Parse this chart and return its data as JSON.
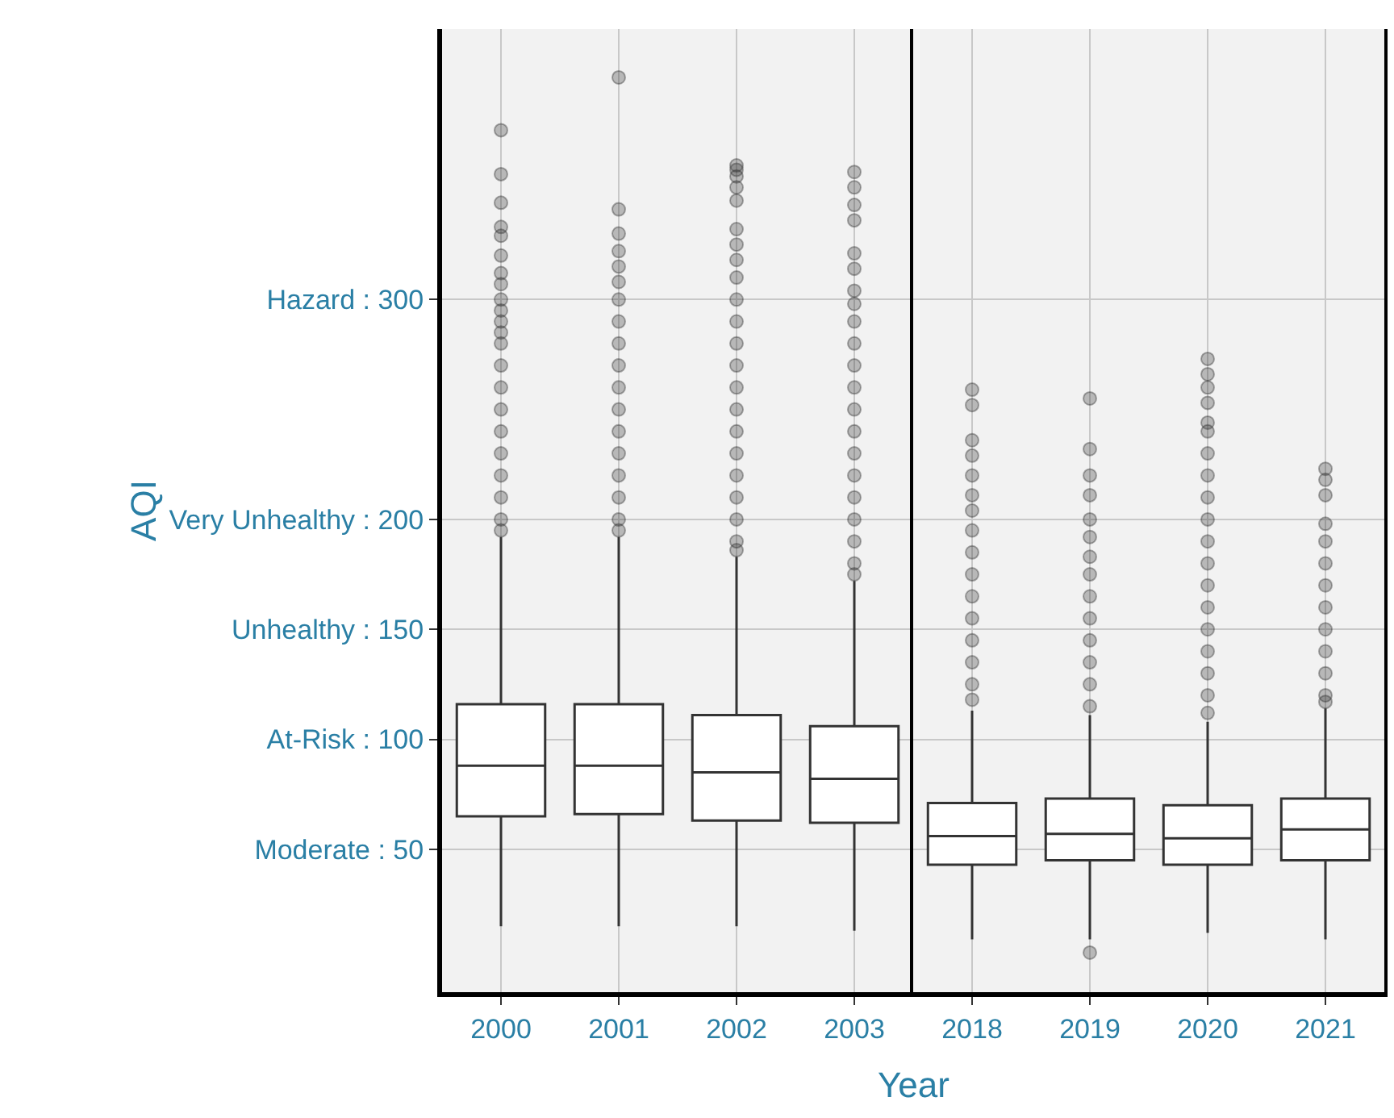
{
  "chart_data": [
    {
      "type": "box",
      "ylabel": "AQI",
      "categories": [
        "2000",
        "2001",
        "2002",
        "2003"
      ],
      "boxes": [
        {
          "low": 15,
          "q1": 65,
          "median": 88,
          "q3": 116,
          "high": 192,
          "outliers": [
            377,
            357,
            344,
            333,
            329,
            320,
            312,
            307,
            300,
            295,
            290,
            285,
            280,
            270,
            260,
            250,
            240,
            230,
            220,
            210,
            200,
            195
          ]
        },
        {
          "low": 15,
          "q1": 66,
          "median": 88,
          "q3": 116,
          "high": 192,
          "outliers": [
            401,
            341,
            330,
            322,
            315,
            308,
            300,
            290,
            280,
            270,
            260,
            250,
            240,
            230,
            220,
            210,
            200,
            195
          ]
        },
        {
          "low": 15,
          "q1": 63,
          "median": 85,
          "q3": 111,
          "high": 183,
          "outliers": [
            361,
            359,
            356,
            351,
            345,
            332,
            325,
            318,
            310,
            300,
            290,
            280,
            270,
            260,
            250,
            240,
            230,
            220,
            210,
            200,
            190,
            186
          ]
        },
        {
          "low": 13,
          "q1": 62,
          "median": 82,
          "q3": 106,
          "high": 172,
          "outliers": [
            358,
            351,
            343,
            336,
            321,
            314,
            304,
            298,
            290,
            280,
            270,
            260,
            250,
            240,
            230,
            220,
            210,
            200,
            190,
            180,
            175
          ]
        }
      ],
      "ylim": [
        -15,
        423
      ],
      "yticks": [
        {
          "value": 50,
          "label": "Moderate : 50"
        },
        {
          "value": 100,
          "label": "At-Risk : 100"
        },
        {
          "value": 150,
          "label": "Unhealthy : 150"
        },
        {
          "value": 200,
          "label": "Very Unhealthy : 200"
        },
        {
          "value": 300,
          "label": "Hazard : 300"
        }
      ],
      "grid": true,
      "marker": "circle"
    },
    {
      "type": "box",
      "xlabel": "Year",
      "categories": [
        "2018",
        "2019",
        "2020",
        "2021"
      ],
      "boxes": [
        {
          "low": 9,
          "q1": 43,
          "median": 56,
          "q3": 71,
          "high": 113,
          "outliers": [
            259,
            252,
            236,
            229,
            220,
            211,
            204,
            195,
            185,
            175,
            165,
            155,
            145,
            135,
            125,
            118
          ]
        },
        {
          "low": 9,
          "q1": 45,
          "median": 57,
          "q3": 73,
          "high": 111,
          "outliers": [
            255,
            232,
            220,
            211,
            200,
            192,
            183,
            175,
            165,
            155,
            145,
            135,
            125,
            115,
            3
          ]
        },
        {
          "low": 12,
          "q1": 43,
          "median": 55,
          "q3": 70,
          "high": 108,
          "outliers": [
            273,
            266,
            260,
            253,
            244,
            240,
            230,
            220,
            210,
            200,
            190,
            180,
            170,
            160,
            150,
            140,
            130,
            120,
            112
          ]
        },
        {
          "low": 9,
          "q1": 45,
          "median": 59,
          "q3": 73,
          "high": 114,
          "outliers": [
            223,
            218,
            211,
            198,
            190,
            180,
            170,
            160,
            150,
            140,
            130,
            120,
            117
          ]
        }
      ],
      "ylim": [
        -15,
        423
      ],
      "yticks": [
        {
          "value": 50,
          "label": null
        },
        {
          "value": 100,
          "label": null
        },
        {
          "value": 150,
          "label": null
        },
        {
          "value": 200,
          "label": null
        },
        {
          "value": 300,
          "label": null
        }
      ],
      "tick_labels": "x",
      "grid": true,
      "marker": "circle"
    }
  ]
}
